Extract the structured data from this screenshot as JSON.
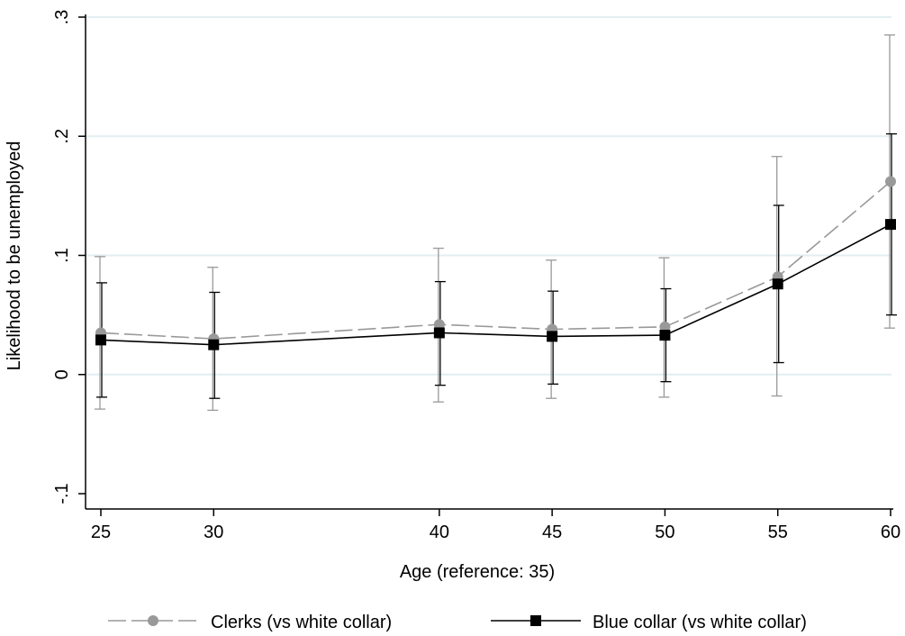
{
  "chart_data": {
    "type": "line",
    "xlabel": "Age (reference: 35)",
    "ylabel": "Likelihood to be unemployed",
    "x": [
      25,
      30,
      40,
      45,
      50,
      55,
      60
    ],
    "x_ticks": [
      25,
      30,
      40,
      45,
      50,
      55,
      60
    ],
    "x_tick_labels": [
      "25",
      "30",
      "40",
      "45",
      "50",
      "55",
      "60"
    ],
    "y_ticks": [
      -0.1,
      0,
      0.1,
      0.2,
      0.3
    ],
    "y_tick_labels": [
      "-.1",
      "0",
      ".1",
      ".2",
      ".3"
    ],
    "xlim": [
      25,
      60
    ],
    "ylim": [
      -0.1,
      0.3
    ],
    "grid": true,
    "legend_position": "bottom",
    "series": [
      {
        "name": "Clerks (vs white collar)",
        "color": "#999999",
        "marker": "circle",
        "line_style": "dashed",
        "values": [
          0.035,
          0.03,
          0.042,
          0.038,
          0.04,
          0.082,
          0.162
        ],
        "ci_low": [
          -0.029,
          -0.03,
          -0.023,
          -0.02,
          -0.019,
          -0.018,
          0.039
        ],
        "ci_high": [
          0.099,
          0.09,
          0.106,
          0.096,
          0.098,
          0.183,
          0.285
        ]
      },
      {
        "name": "Blue collar (vs white collar)",
        "color": "#000000",
        "marker": "square",
        "line_style": "solid",
        "values": [
          0.029,
          0.025,
          0.035,
          0.032,
          0.033,
          0.076,
          0.126
        ],
        "ci_low": [
          -0.019,
          -0.02,
          -0.009,
          -0.008,
          -0.006,
          0.01,
          0.05
        ],
        "ci_high": [
          0.077,
          0.069,
          0.078,
          0.07,
          0.072,
          0.142,
          0.202
        ]
      }
    ]
  }
}
